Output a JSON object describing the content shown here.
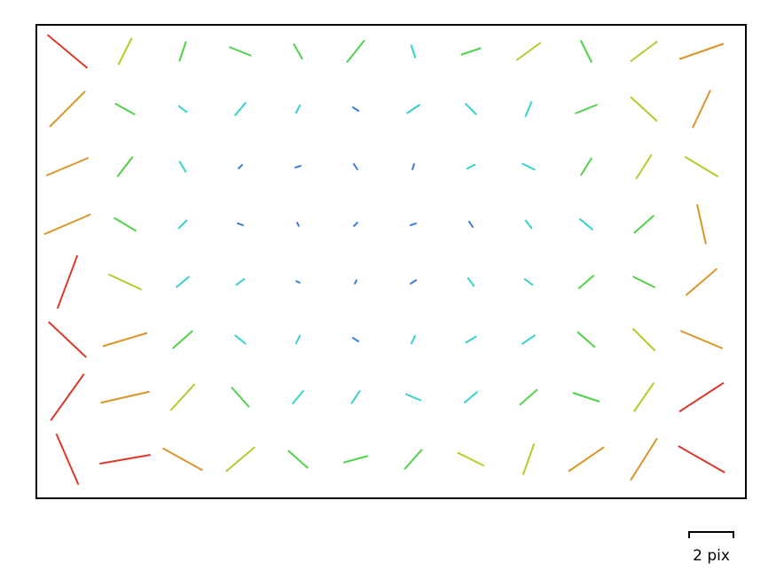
{
  "chart_data": {
    "type": "vector",
    "scale_bar": {
      "value": 2,
      "label": "2 pix"
    },
    "color_scale": [
      {
        "max": 0.4,
        "color": "#3d7fd9"
      },
      {
        "max": 0.8,
        "color": "#36d2c8"
      },
      {
        "max": 1.3,
        "color": "#4fd24a"
      },
      {
        "max": 1.8,
        "color": "#b8c92a"
      },
      {
        "max": 2.3,
        "color": "#d9942a"
      },
      {
        "max": 99,
        "color": "#d93a2a"
      }
    ],
    "xs": [
      35,
      100,
      165,
      230,
      295,
      360,
      425,
      490,
      555,
      620,
      685,
      750
    ],
    "ys": [
      30,
      95,
      160,
      225,
      290,
      355,
      420,
      490
    ],
    "vectors": [
      [
        [
          1.8,
          1.5
        ],
        [
          -0.6,
          1.2
        ],
        [
          0.3,
          -0.9
        ],
        [
          1.0,
          0.4
        ],
        [
          -0.4,
          -0.7
        ],
        [
          0.8,
          -1.0
        ],
        [
          0.2,
          0.6
        ],
        [
          -0.9,
          0.3
        ],
        [
          1.1,
          -0.8
        ],
        [
          0.5,
          1.0
        ],
        [
          -1.2,
          0.9
        ],
        [
          2.0,
          -0.7
        ]
      ],
      [
        [
          -1.6,
          1.6
        ],
        [
          0.9,
          0.5
        ],
        [
          0.4,
          0.3
        ],
        [
          -0.5,
          0.6
        ],
        [
          0.2,
          -0.4
        ],
        [
          0.3,
          0.2
        ],
        [
          -0.6,
          0.4
        ],
        [
          0.5,
          0.5
        ],
        [
          -0.3,
          0.7
        ],
        [
          1.0,
          -0.4
        ],
        [
          1.2,
          1.1
        ],
        [
          -0.8,
          1.7
        ]
      ],
      [
        [
          1.9,
          -0.8
        ],
        [
          -0.7,
          0.9
        ],
        [
          0.3,
          0.5
        ],
        [
          0.2,
          -0.2
        ],
        [
          -0.3,
          0.1
        ],
        [
          0.2,
          0.3
        ],
        [
          0.1,
          -0.3
        ],
        [
          -0.4,
          0.2
        ],
        [
          0.6,
          0.3
        ],
        [
          -0.5,
          0.8
        ],
        [
          0.7,
          -1.1
        ],
        [
          1.5,
          0.9
        ]
      ],
      [
        [
          -2.1,
          0.9
        ],
        [
          1.0,
          0.6
        ],
        [
          -0.4,
          0.4
        ],
        [
          0.3,
          0.1
        ],
        [
          0.1,
          0.2
        ],
        [
          -0.2,
          0.2
        ],
        [
          0.3,
          -0.1
        ],
        [
          0.2,
          0.3
        ],
        [
          -0.3,
          -0.4
        ],
        [
          0.6,
          0.5
        ],
        [
          -0.9,
          0.8
        ],
        [
          0.4,
          1.8
        ]
      ],
      [
        [
          0.9,
          -2.4
        ],
        [
          1.5,
          0.7
        ],
        [
          -0.6,
          0.5
        ],
        [
          0.4,
          -0.3
        ],
        [
          0.2,
          0.1
        ],
        [
          0.1,
          -0.2
        ],
        [
          -0.3,
          0.2
        ],
        [
          0.3,
          0.4
        ],
        [
          0.4,
          0.3
        ],
        [
          -0.7,
          0.6
        ],
        [
          1.0,
          0.5
        ],
        [
          -1.4,
          1.2
        ]
      ],
      [
        [
          1.7,
          1.6
        ],
        [
          -2.0,
          0.6
        ],
        [
          0.9,
          -0.8
        ],
        [
          0.5,
          0.4
        ],
        [
          -0.2,
          0.4
        ],
        [
          0.3,
          0.2
        ],
        [
          0.2,
          -0.4
        ],
        [
          -0.5,
          0.3
        ],
        [
          0.6,
          -0.4
        ],
        [
          0.8,
          0.7
        ],
        [
          -1.0,
          -1.0
        ],
        [
          1.9,
          0.8
        ]
      ],
      [
        [
          -1.5,
          2.1
        ],
        [
          2.2,
          -0.5
        ],
        [
          -1.1,
          1.2
        ],
        [
          0.8,
          0.9
        ],
        [
          0.5,
          -0.6
        ],
        [
          -0.4,
          0.6
        ],
        [
          0.7,
          0.3
        ],
        [
          0.6,
          -0.5
        ],
        [
          -0.8,
          0.7
        ],
        [
          1.2,
          0.4
        ],
        [
          0.9,
          -1.3
        ],
        [
          -2.0,
          1.3
        ]
      ],
      [
        [
          1.0,
          2.3
        ],
        [
          -2.3,
          0.4
        ],
        [
          1.8,
          1.0
        ],
        [
          -1.3,
          1.1
        ],
        [
          0.9,
          0.8
        ],
        [
          1.1,
          -0.3
        ],
        [
          -0.8,
          0.9
        ],
        [
          1.2,
          0.6
        ],
        [
          -0.5,
          1.4
        ],
        [
          1.6,
          -1.1
        ],
        [
          -1.2,
          1.9
        ],
        [
          2.1,
          1.2
        ]
      ]
    ]
  }
}
